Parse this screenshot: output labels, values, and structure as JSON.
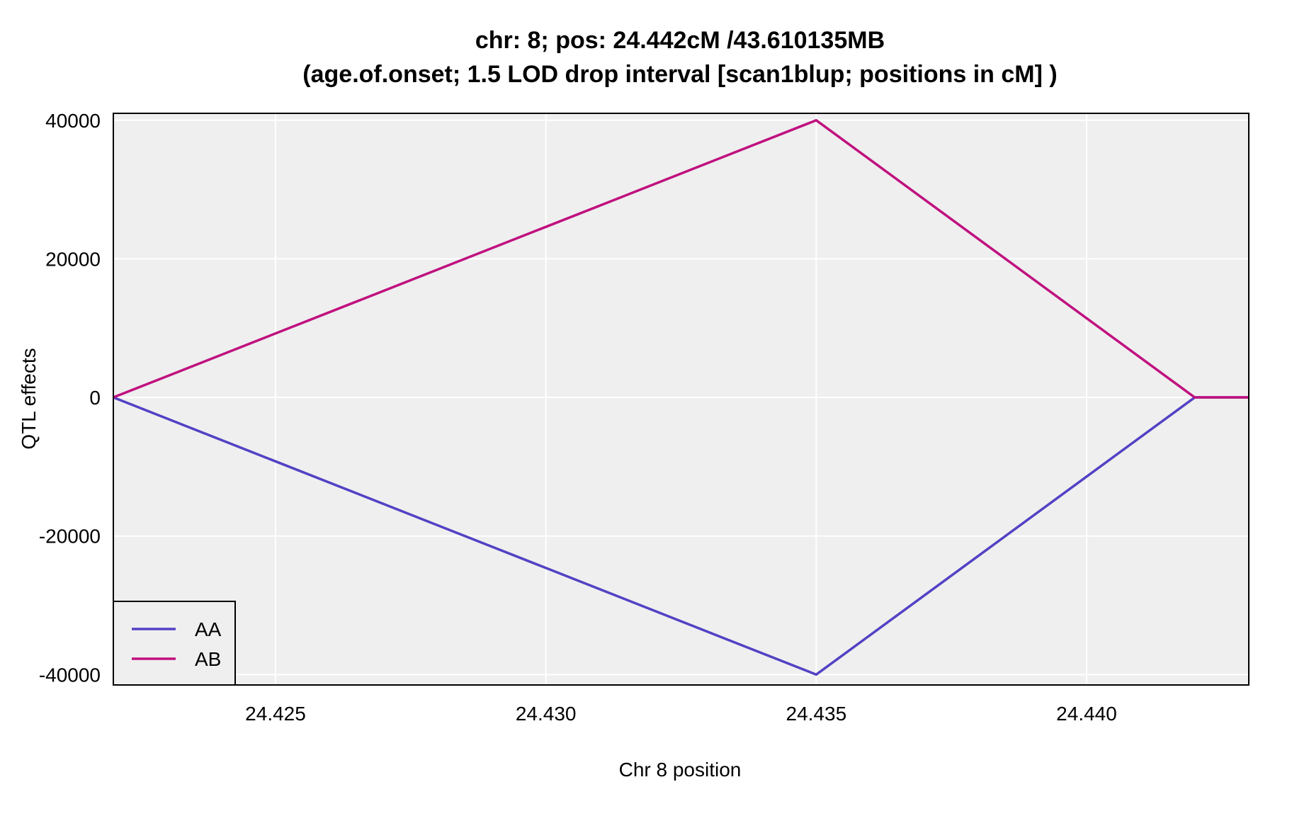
{
  "chart_data": {
    "type": "line",
    "title_line1": "chr: 8; pos: 24.442cM /43.610135MB",
    "title_line2": "(age.of.onset; 1.5 LOD drop interval [scan1blup; positions in cM] )",
    "xlabel": "Chr 8 position",
    "ylabel": "QTL effects",
    "xlim": [
      24.422,
      24.443
    ],
    "ylim": [
      -41500,
      41000
    ],
    "xticks": [
      24.425,
      24.43,
      24.435,
      24.44
    ],
    "xtick_labels": [
      "24.425",
      "24.430",
      "24.435",
      "24.440"
    ],
    "yticks": [
      -40000,
      -20000,
      0,
      20000,
      40000
    ],
    "ytick_labels": [
      "-40000",
      "-20000",
      "0",
      "20000",
      "40000"
    ],
    "grid": true,
    "legend_position": "bottom-left",
    "panel_color": "#efefef",
    "grid_color": "#ffffff",
    "series": [
      {
        "name": "AA",
        "color": "#5242c4",
        "x": [
          24.422,
          24.435,
          24.442,
          24.443
        ],
        "y": [
          0,
          -40000,
          0,
          0
        ]
      },
      {
        "name": "AB",
        "color": "#c0117f",
        "x": [
          24.422,
          24.435,
          24.442,
          24.443
        ],
        "y": [
          0,
          40000,
          0,
          0
        ]
      }
    ]
  }
}
